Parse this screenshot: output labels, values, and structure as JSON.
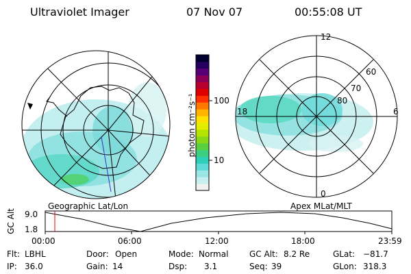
{
  "header": {
    "title": "Ultraviolet Imager",
    "date": "07 Nov 07",
    "time": "00:55:08 UT"
  },
  "left_panel": {
    "caption": "Geographic Lat/Lon"
  },
  "right_panel": {
    "caption": "Apex  MLat/MLT",
    "mlt_labels": [
      "12",
      "18",
      "6",
      "0"
    ],
    "mlat_labels": [
      "60",
      "70",
      "80"
    ]
  },
  "colorbar": {
    "unit_label": "photon cm⁻²s⁻¹",
    "ticks": [
      "100",
      "10"
    ],
    "colors": [
      "#f0f0f0",
      "#c8eef0",
      "#9ae6e6",
      "#5fd8d8",
      "#2fd0b8",
      "#3ad080",
      "#5ad040",
      "#88d818",
      "#b4e400",
      "#e4ec00",
      "#ffe000",
      "#ffb400",
      "#ff7800",
      "#ff3000",
      "#e00000",
      "#b8002c",
      "#8c0058",
      "#580078",
      "#280060",
      "#000030"
    ]
  },
  "altitude_plot": {
    "y_label": "GC Alt",
    "y_ticks": [
      "9.0",
      "1.8"
    ],
    "x_ticks": [
      "00:00",
      "06:00",
      "12:00",
      "18:00",
      "23:59"
    ],
    "marker_color": "#e00000"
  },
  "info": {
    "filt_label": "Flt:",
    "filt_value": "LBHL",
    "ip_label": "IP:",
    "ip_value": "36.0",
    "door_label": "Door:",
    "door_value": "Open",
    "gain_label": "Gain:",
    "gain_value": "14",
    "mode_label": "Mode:",
    "mode_value": "Normal",
    "dsp_label": "Dsp:",
    "dsp_value": "3.1",
    "gcalt_label": "GC Alt:",
    "gcalt_value": "8.2 Re",
    "seq_label": "Seq:",
    "seq_value": "39",
    "glat_label": "GLat:",
    "glat_value": "−81.7",
    "glon_label": "GLon:",
    "glon_value": "318.3"
  }
}
